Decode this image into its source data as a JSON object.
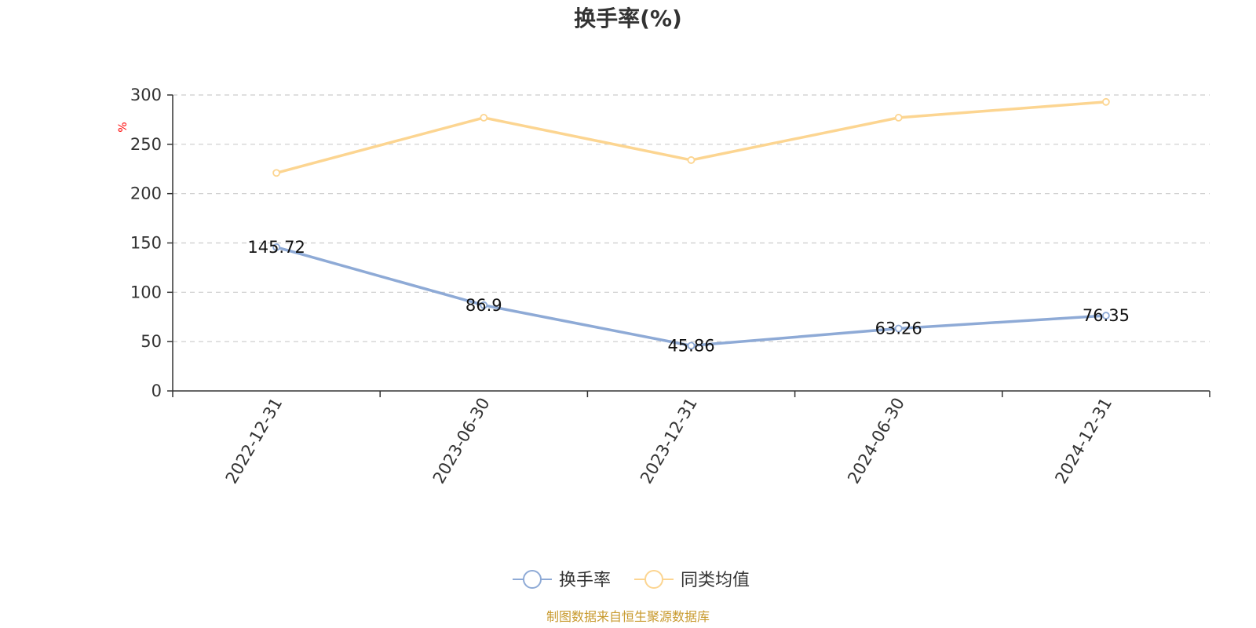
{
  "chart_data": {
    "type": "line",
    "title": "换手率(%)",
    "ylabel": "%",
    "xlabel": "",
    "categories": [
      "2022-12-31",
      "2023-06-30",
      "2023-12-31",
      "2024-06-30",
      "2024-12-31"
    ],
    "ylim": [
      0,
      300
    ],
    "yticks": [
      0,
      50,
      100,
      150,
      200,
      250,
      300
    ],
    "grid": true,
    "legend_position": "bottom-center",
    "series": [
      {
        "name": "换手率",
        "color": "#8eaad6",
        "values": [
          145.72,
          86.9,
          45.86,
          63.26,
          76.35
        ],
        "data_labels": [
          "145.72",
          "86.9",
          "45.86",
          "63.26",
          "76.35"
        ]
      },
      {
        "name": "同类均值",
        "color": "#fcd591",
        "values": [
          221,
          277,
          234,
          277,
          293
        ]
      }
    ]
  },
  "source_note": "制图数据来自恒生聚源数据库",
  "colors": {
    "axis": "#333333",
    "grid": "#cccccc",
    "unit": "#ff0000",
    "source": "#c89a2e"
  }
}
